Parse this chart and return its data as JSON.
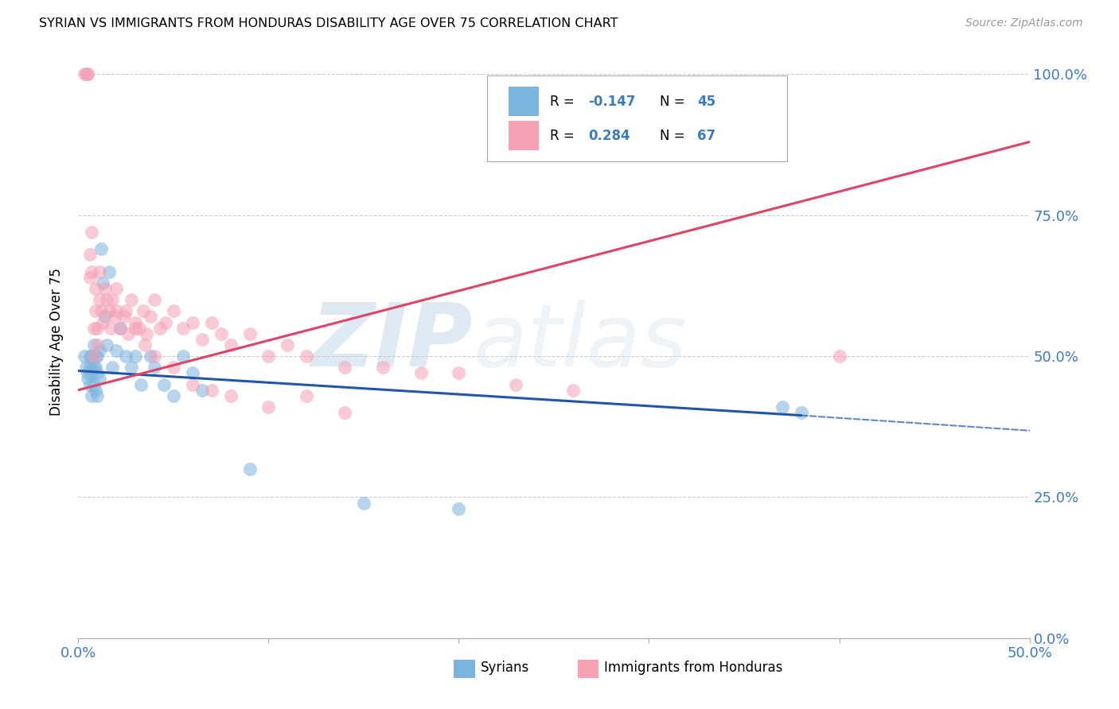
{
  "title": "SYRIAN VS IMMIGRANTS FROM HONDURAS DISABILITY AGE OVER 75 CORRELATION CHART",
  "source": "Source: ZipAtlas.com",
  "ylabel": "Disability Age Over 75",
  "yticks": [
    0.0,
    0.25,
    0.5,
    0.75,
    1.0
  ],
  "ytick_labels_right": [
    "0.0%",
    "25.0%",
    "50.0%",
    "75.0%",
    "100.0%"
  ],
  "xmin": 0.0,
  "xmax": 0.5,
  "ymin": 0.0,
  "ymax": 1.05,
  "watermark": "ZIPAtlas",
  "blue_scatter_color": "#7ab4df",
  "pink_scatter_color": "#f5a0b5",
  "blue_line_color": "#2255aa",
  "pink_line_color": "#dd4466",
  "legend_label_blue": "Syrians",
  "legend_label_pink": "Immigrants from Honduras",
  "syrians_x": [
    0.003,
    0.004,
    0.005,
    0.005,
    0.006,
    0.006,
    0.006,
    0.007,
    0.007,
    0.007,
    0.008,
    0.008,
    0.008,
    0.009,
    0.009,
    0.009,
    0.01,
    0.01,
    0.01,
    0.011,
    0.011,
    0.012,
    0.013,
    0.014,
    0.015,
    0.016,
    0.018,
    0.02,
    0.022,
    0.025,
    0.028,
    0.03,
    0.033,
    0.038,
    0.04,
    0.045,
    0.05,
    0.055,
    0.06,
    0.065,
    0.09,
    0.15,
    0.37,
    0.38,
    0.2
  ],
  "syrians_y": [
    0.5,
    0.48,
    0.47,
    0.46,
    0.5,
    0.48,
    0.45,
    0.5,
    0.47,
    0.43,
    0.52,
    0.48,
    0.45,
    0.5,
    0.48,
    0.44,
    0.5,
    0.47,
    0.43,
    0.51,
    0.46,
    0.69,
    0.63,
    0.57,
    0.52,
    0.65,
    0.48,
    0.51,
    0.55,
    0.5,
    0.48,
    0.5,
    0.45,
    0.5,
    0.48,
    0.45,
    0.43,
    0.5,
    0.47,
    0.44,
    0.3,
    0.24,
    0.41,
    0.4,
    0.23
  ],
  "honduras_x": [
    0.003,
    0.004,
    0.005,
    0.005,
    0.006,
    0.006,
    0.007,
    0.007,
    0.008,
    0.008,
    0.009,
    0.009,
    0.01,
    0.01,
    0.011,
    0.011,
    0.012,
    0.013,
    0.014,
    0.015,
    0.016,
    0.017,
    0.018,
    0.019,
    0.02,
    0.022,
    0.024,
    0.026,
    0.028,
    0.03,
    0.032,
    0.034,
    0.036,
    0.038,
    0.04,
    0.043,
    0.046,
    0.05,
    0.055,
    0.06,
    0.065,
    0.07,
    0.075,
    0.08,
    0.09,
    0.1,
    0.11,
    0.12,
    0.14,
    0.16,
    0.18,
    0.2,
    0.23,
    0.26,
    0.02,
    0.025,
    0.03,
    0.035,
    0.04,
    0.05,
    0.06,
    0.07,
    0.08,
    0.1,
    0.12,
    0.14,
    0.4
  ],
  "honduras_y": [
    1.0,
    1.0,
    1.0,
    1.0,
    0.68,
    0.64,
    0.72,
    0.65,
    0.55,
    0.5,
    0.62,
    0.58,
    0.55,
    0.52,
    0.65,
    0.6,
    0.58,
    0.56,
    0.62,
    0.6,
    0.58,
    0.55,
    0.6,
    0.57,
    0.58,
    0.55,
    0.57,
    0.54,
    0.6,
    0.56,
    0.55,
    0.58,
    0.54,
    0.57,
    0.6,
    0.55,
    0.56,
    0.58,
    0.55,
    0.56,
    0.53,
    0.56,
    0.54,
    0.52,
    0.54,
    0.5,
    0.52,
    0.5,
    0.48,
    0.48,
    0.47,
    0.47,
    0.45,
    0.44,
    0.62,
    0.58,
    0.55,
    0.52,
    0.5,
    0.48,
    0.45,
    0.44,
    0.43,
    0.41,
    0.43,
    0.4,
    0.5
  ]
}
